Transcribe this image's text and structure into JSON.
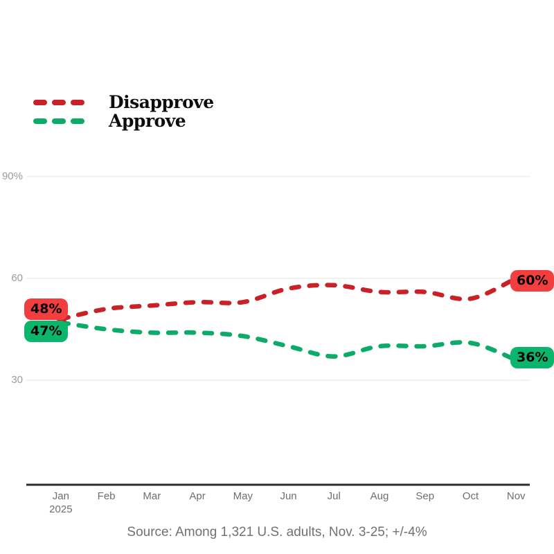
{
  "legend": {
    "items": [
      {
        "label": "Disapprove",
        "color": "#c92127"
      },
      {
        "label": "Approve",
        "color": "#0cab68"
      }
    ]
  },
  "chart_data": {
    "type": "line",
    "x_labels": [
      "Jan",
      "Feb",
      "Mar",
      "Apr",
      "May",
      "Jun",
      "Jul",
      "Aug",
      "Sep",
      "Oct",
      "Nov"
    ],
    "x_sub_label": "2025",
    "series": [
      {
        "name": "Disapprove",
        "color": "#c92127",
        "values": [
          48,
          51,
          52,
          53,
          53,
          57,
          58,
          56,
          56,
          54,
          60
        ]
      },
      {
        "name": "Approve",
        "color": "#0cab68",
        "values": [
          47,
          45,
          44,
          44,
          43,
          40,
          37,
          40,
          40,
          41,
          36
        ]
      }
    ],
    "yticks": [
      {
        "label": "90%",
        "value": 90
      },
      {
        "label": "60",
        "value": 60
      },
      {
        "label": "30",
        "value": 30
      }
    ],
    "ylim": [
      30,
      90
    ],
    "grid": "horizontal",
    "legend_position": "top-left",
    "line_style": "dashed"
  },
  "annotations": {
    "start": [
      {
        "label": "48%",
        "bg": "#f23e3e"
      },
      {
        "label": "47%",
        "bg": "#0cb56c"
      }
    ],
    "end": [
      {
        "label": "60%",
        "bg": "#f23e3e"
      },
      {
        "label": "36%",
        "bg": "#0cb56c"
      }
    ]
  },
  "source": "Source: Among 1,321 U.S. adults, Nov. 3-25; +/-4%"
}
